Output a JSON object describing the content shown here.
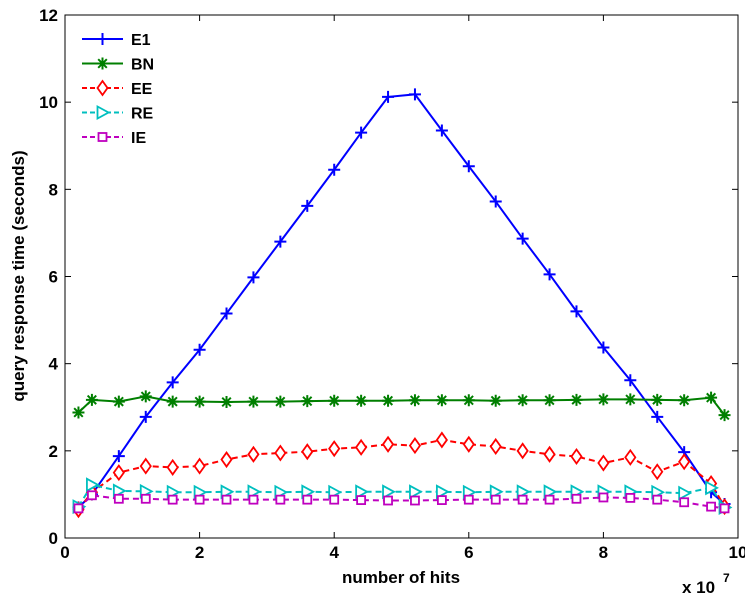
{
  "chart_data": {
    "type": "line",
    "xlabel": "number of hits",
    "ylabel": "query response time (seconds)",
    "x_exponent_label": "x 10",
    "x_exponent_power": "7",
    "xlim": [
      0,
      10
    ],
    "ylim": [
      0,
      12
    ],
    "xticks": [
      "0",
      "2",
      "4",
      "6",
      "8",
      "10"
    ],
    "yticks": [
      "0",
      "2",
      "4",
      "6",
      "8",
      "10",
      "12"
    ],
    "grid": false,
    "legend_position": "top-left",
    "x": [
      0.2,
      0.4,
      0.8,
      1.2,
      1.6,
      2.0,
      2.4,
      2.8,
      3.2,
      3.6,
      4.0,
      4.4,
      4.8,
      5.2,
      5.6,
      6.0,
      6.4,
      6.8,
      7.2,
      7.6,
      8.0,
      8.4,
      8.8,
      9.2,
      9.6,
      9.8
    ],
    "series": [
      {
        "name": "E1",
        "color": "#0000ff",
        "marker": "plus",
        "dash": "",
        "values": [
          0.7,
          1.0,
          1.88,
          2.78,
          3.57,
          4.32,
          5.15,
          5.98,
          6.8,
          7.62,
          8.45,
          9.3,
          10.12,
          10.18,
          9.35,
          8.53,
          7.72,
          6.87,
          6.05,
          5.2,
          4.37,
          3.62,
          2.78,
          1.97,
          1.05,
          0.78
        ]
      },
      {
        "name": "BN",
        "color": "#007f00",
        "marker": "star",
        "dash": "",
        "values": [
          2.88,
          3.17,
          3.13,
          3.25,
          3.13,
          3.13,
          3.12,
          3.13,
          3.13,
          3.14,
          3.15,
          3.15,
          3.15,
          3.16,
          3.16,
          3.16,
          3.15,
          3.16,
          3.16,
          3.17,
          3.18,
          3.18,
          3.17,
          3.16,
          3.22,
          2.82
        ]
      },
      {
        "name": "EE",
        "color": "#ff0000",
        "marker": "diamond",
        "dash": "6,4",
        "values": [
          0.65,
          1.05,
          1.5,
          1.65,
          1.62,
          1.65,
          1.8,
          1.92,
          1.95,
          1.98,
          2.05,
          2.08,
          2.15,
          2.12,
          2.25,
          2.15,
          2.1,
          2.0,
          1.92,
          1.87,
          1.72,
          1.85,
          1.52,
          1.75,
          1.25,
          0.72
        ]
      },
      {
        "name": "RE",
        "color": "#00bfbf",
        "marker": "triangle-right",
        "dash": "6,4",
        "values": [
          0.72,
          1.22,
          1.08,
          1.07,
          1.05,
          1.05,
          1.06,
          1.06,
          1.05,
          1.06,
          1.05,
          1.06,
          1.06,
          1.06,
          1.06,
          1.05,
          1.06,
          1.06,
          1.06,
          1.06,
          1.06,
          1.06,
          1.05,
          1.03,
          1.15,
          0.7
        ]
      },
      {
        "name": "IE",
        "color": "#bf00bf",
        "marker": "square",
        "dash": "6,4",
        "values": [
          0.68,
          0.98,
          0.9,
          0.9,
          0.88,
          0.88,
          0.88,
          0.88,
          0.88,
          0.88,
          0.88,
          0.87,
          0.86,
          0.86,
          0.87,
          0.88,
          0.88,
          0.88,
          0.88,
          0.9,
          0.93,
          0.92,
          0.88,
          0.82,
          0.72,
          0.68
        ]
      }
    ]
  }
}
